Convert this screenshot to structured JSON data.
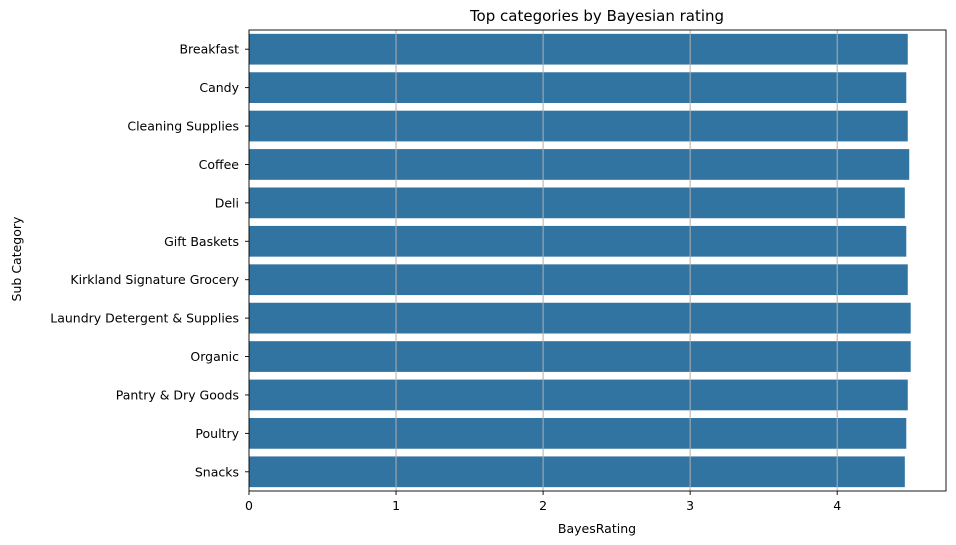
{
  "chart_data": {
    "type": "bar",
    "orientation": "horizontal",
    "title": "Top categories by Bayesian rating",
    "xlabel": "BayesRating",
    "ylabel": "Sub Category",
    "categories": [
      "Breakfast",
      "Candy",
      "Cleaning Supplies",
      "Coffee",
      "Deli",
      "Gift Baskets",
      "Kirkland Signature Grocery",
      "Laundry Detergent & Supplies",
      "Organic",
      "Pantry & Dry Goods",
      "Poultry",
      "Snacks"
    ],
    "values": [
      4.48,
      4.47,
      4.48,
      4.49,
      4.46,
      4.47,
      4.48,
      4.5,
      4.5,
      4.48,
      4.47,
      4.46
    ],
    "xlim": [
      0,
      4.74
    ],
    "xticks": [
      "0",
      "1",
      "2",
      "3",
      "4"
    ],
    "grid": "x",
    "bar_color": "#3274a1",
    "grid_color": "#b0b0b0"
  }
}
